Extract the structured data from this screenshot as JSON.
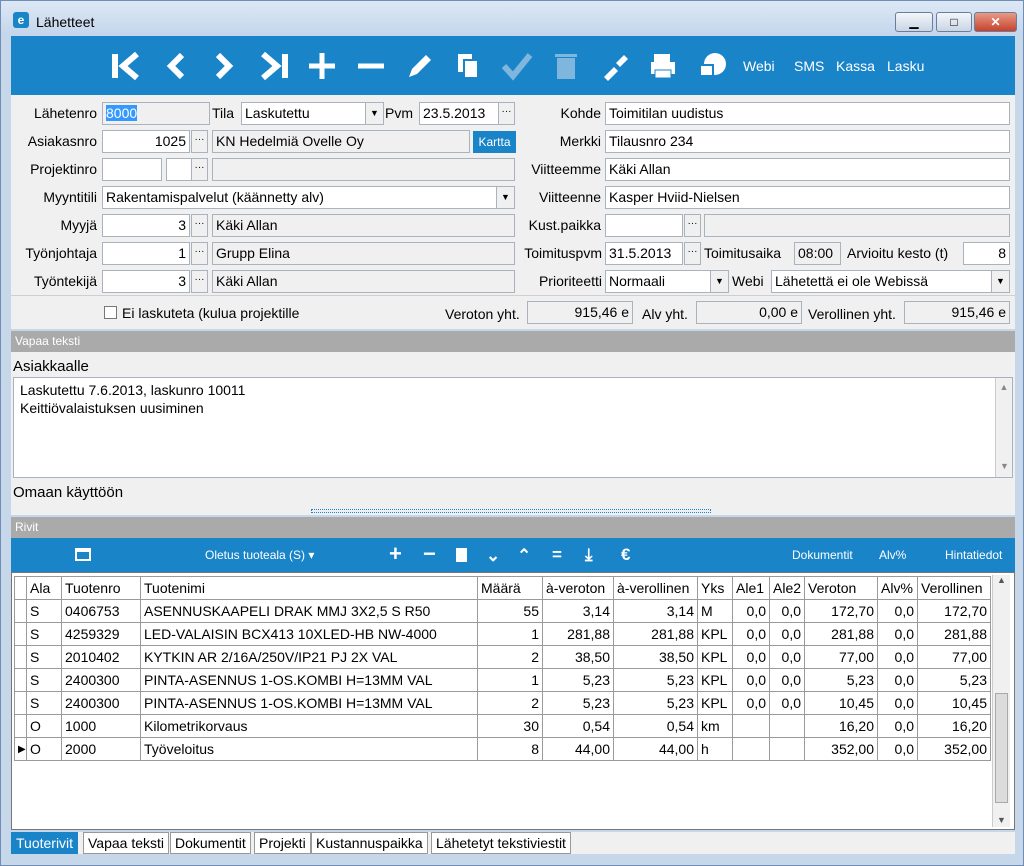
{
  "window": {
    "title": "Lähetteet",
    "app_icon": "e"
  },
  "toolbar": {
    "items": [
      "Webi",
      "SMS",
      "Kassa",
      "Lasku"
    ]
  },
  "form": {
    "lahetenro": {
      "label": "Lähetenro",
      "value": "8000"
    },
    "tila": {
      "label": "Tila",
      "value": "Laskutettu"
    },
    "pvm": {
      "label": "Pvm",
      "value": "23.5.2013"
    },
    "kohde": {
      "label": "Kohde",
      "value": "Toimitilan uudistus"
    },
    "asiakasnro": {
      "label": "Asiakasnro",
      "value": "1025",
      "name": "KN Hedelmiä Ovelle Oy",
      "kartta": "Kartta"
    },
    "merkki": {
      "label": "Merkki",
      "value": "Tilausnro 234"
    },
    "projektinro": {
      "label": "Projektinro"
    },
    "viitteemme": {
      "label": "Viitteemme",
      "value": "Käki Allan"
    },
    "myyntitili": {
      "label": "Myyntitili",
      "value": "Rakentamispalvelut (käännetty alv)"
    },
    "viitteenne": {
      "label": "Viitteenne",
      "value": "Kasper Hviid-Nielsen"
    },
    "myyja": {
      "label": "Myyjä",
      "value": "3",
      "name": "Käki Allan"
    },
    "kustpaikka": {
      "label": "Kust.paikka"
    },
    "tyonjohtaja": {
      "label": "Työnjohtaja",
      "value": "1",
      "name": "Grupp Elina"
    },
    "toimituspvm": {
      "label": "Toimituspvm",
      "value": "31.5.2013"
    },
    "toimitusaika": {
      "label": "Toimitusaika",
      "value": "08:00"
    },
    "arvioitu": {
      "label": "Arvioitu kesto (t)",
      "value": "8"
    },
    "tyontekija": {
      "label": "Työntekijä",
      "value": "3",
      "name": "Käki Allan"
    },
    "prioriteetti": {
      "label": "Prioriteetti",
      "value": "Normaali"
    },
    "webi": {
      "label": "Webi",
      "value": "Lähetettä ei ole Webissä"
    },
    "ei_laskuteta": "Ei laskuteta (kulua projektille",
    "veroton": {
      "label": "Veroton yht.",
      "value": "915,46 e"
    },
    "alv": {
      "label": "Alv yht.",
      "value": "0,00 e"
    },
    "verollinen": {
      "label": "Verollinen yht.",
      "value": "915,46 e"
    }
  },
  "vapaa": {
    "section": "Vapaa teksti",
    "asiakkaalle": "Asiakkaalle",
    "line1": "Laskutettu 7.6.2013, laskunro 10011",
    "line2": "Keittiövalaistuksen uusiminen",
    "omaan": "Omaan käyttöön"
  },
  "rivit": {
    "section": "Rivit",
    "tuoteala": "Oletus tuoteala (S)",
    "dokumentit": "Dokumentit",
    "alv": "Alv%",
    "hintatiedot": "Hintatiedot"
  },
  "grid": {
    "headers": [
      "Ala",
      "Tuotenro",
      "Tuotenimi",
      "Määrä",
      "à-veroton",
      "à-verollinen",
      "Yks",
      "Ale1",
      "Ale2",
      "Veroton",
      "Alv%",
      "Verollinen"
    ],
    "rows": [
      [
        "S",
        "0406753",
        "ASENNUSKAAPELI DRAK MMJ 3X2,5 S R50",
        "55",
        "3,14",
        "3,14",
        "M",
        "0,0",
        "0,0",
        "172,70",
        "0,0",
        "172,70"
      ],
      [
        "S",
        "4259329",
        "LED-VALAISIN BCX413 10XLED-HB NW-4000",
        "1",
        "281,88",
        "281,88",
        "KPL",
        "0,0",
        "0,0",
        "281,88",
        "0,0",
        "281,88"
      ],
      [
        "S",
        "2010402",
        "KYTKIN AR 2/16A/250V/IP21 PJ 2X VAL",
        "2",
        "38,50",
        "38,50",
        "KPL",
        "0,0",
        "0,0",
        "77,00",
        "0,0",
        "77,00"
      ],
      [
        "S",
        "2400300",
        "PINTA-ASENNUS 1-OS.KOMBI H=13MM VAL",
        "1",
        "5,23",
        "5,23",
        "KPL",
        "0,0",
        "0,0",
        "5,23",
        "0,0",
        "5,23"
      ],
      [
        "S",
        "2400300",
        "PINTA-ASENNUS 1-OS.KOMBI H=13MM VAL",
        "2",
        "5,23",
        "5,23",
        "KPL",
        "0,0",
        "0,0",
        "10,45",
        "0,0",
        "10,45"
      ],
      [
        "O",
        "1000",
        "Kilometrikorvaus",
        "30",
        "0,54",
        "0,54",
        "km",
        "",
        "",
        "16,20",
        "0,0",
        "16,20"
      ],
      [
        "O",
        "2000",
        "Työveloitus",
        "8",
        "44,00",
        "44,00",
        "h",
        "",
        "",
        "352,00",
        "0,0",
        "352,00"
      ]
    ]
  },
  "tabs": [
    "Tuoterivit",
    "Vapaa teksti",
    "Dokumentit",
    "Projekti",
    "Kustannuspaikka",
    "Lähetetyt tekstiviestit"
  ]
}
